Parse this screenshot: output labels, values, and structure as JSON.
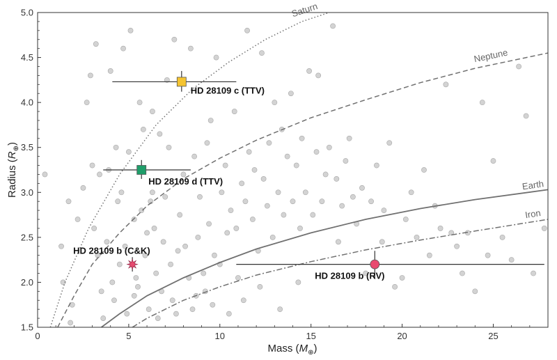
{
  "chart_data": {
    "type": "scatter",
    "xlabel": "Mass",
    "xlabel_symbol": "M",
    "xlabel_sub": "⊕",
    "ylabel": "Radius",
    "ylabel_symbol": "R",
    "ylabel_sub": "⊕",
    "xlim": [
      0,
      28
    ],
    "ylim": [
      1.5,
      5.0
    ],
    "x_ticks": [
      0,
      5,
      10,
      15,
      20,
      25
    ],
    "y_ticks": [
      "1.5",
      "2.0",
      "2.5",
      "3.0",
      "3.5",
      "4.0",
      "4.5",
      "5.0"
    ],
    "grid": false,
    "colors": {
      "background_points": "#c8c8c8",
      "curves": "#707070",
      "planet_c": "#f5c431",
      "planet_d": "#1f9e6a",
      "planet_b": "#e84a6f",
      "errorbar": "#333333"
    },
    "curves": [
      {
        "name": "Saturn",
        "style": "dotted",
        "label_x": 14.7,
        "label_y": 4.95,
        "points": [
          [
            0.7,
            1.5
          ],
          [
            1.5,
            2.0
          ],
          [
            2.8,
            2.6
          ],
          [
            4.5,
            3.2
          ],
          [
            6.5,
            3.75
          ],
          [
            8.5,
            4.15
          ],
          [
            10.5,
            4.45
          ],
          [
            12.5,
            4.7
          ],
          [
            14.5,
            4.9
          ],
          [
            16,
            5.0
          ]
        ]
      },
      {
        "name": "Neptune",
        "style": "dashed",
        "label_x": 24.9,
        "label_y": 4.44,
        "points": [
          [
            1.1,
            1.5
          ],
          [
            2.0,
            1.85
          ],
          [
            3,
            2.2
          ],
          [
            4.5,
            2.55
          ],
          [
            6,
            2.85
          ],
          [
            8,
            3.15
          ],
          [
            10,
            3.38
          ],
          [
            12,
            3.58
          ],
          [
            15,
            3.83
          ],
          [
            18,
            4.03
          ],
          [
            21,
            4.22
          ],
          [
            24,
            4.38
          ],
          [
            28,
            4.55
          ]
        ]
      },
      {
        "name": "Earth",
        "style": "solid",
        "label_x": 27.2,
        "label_y": 3.0,
        "points": [
          [
            3.5,
            1.5
          ],
          [
            4.5,
            1.65
          ],
          [
            6,
            1.85
          ],
          [
            8,
            2.05
          ],
          [
            10,
            2.22
          ],
          [
            12,
            2.37
          ],
          [
            15,
            2.55
          ],
          [
            18,
            2.7
          ],
          [
            21,
            2.82
          ],
          [
            24,
            2.92
          ],
          [
            28,
            3.03
          ]
        ]
      },
      {
        "name": "Iron",
        "style": "dashdot",
        "label_x": 27.2,
        "label_y": 2.68,
        "points": [
          [
            5.2,
            1.5
          ],
          [
            6,
            1.6
          ],
          [
            8,
            1.8
          ],
          [
            10,
            1.95
          ],
          [
            12,
            2.08
          ],
          [
            15,
            2.23
          ],
          [
            18,
            2.36
          ],
          [
            21,
            2.47
          ],
          [
            24,
            2.57
          ],
          [
            28,
            2.7
          ]
        ]
      }
    ],
    "planets": [
      {
        "label": "HD 28109 c (TTV)",
        "x": 7.9,
        "y": 4.23,
        "x_err": [
          3.8,
          3.0
        ],
        "y_err": [
          0.11,
          0.12
        ],
        "marker": "square",
        "color": "#f5c431",
        "label_dx": 13,
        "label_dy": 17
      },
      {
        "label": "HD 28109 d (TTV)",
        "x": 5.7,
        "y": 3.25,
        "x_err": [
          2.1,
          2.7
        ],
        "y_err": [
          0.1,
          0.11
        ],
        "marker": "square",
        "color": "#1f9e6a",
        "label_dx": 10,
        "label_dy": 21
      },
      {
        "label": "HD 28109 b (C&K)",
        "x": 5.2,
        "y": 2.2,
        "x_err": [
          0,
          0
        ],
        "y_err": [
          0.08,
          0.08
        ],
        "marker": "star",
        "color": "#e84a6f",
        "label_dx": -85,
        "label_dy": -15
      },
      {
        "label": "HD 28109 b (RV)",
        "x": 18.5,
        "y": 2.2,
        "x_err": [
          7.6,
          9.3
        ],
        "y_err": [
          0.15,
          0.15
        ],
        "marker": "circle",
        "color": "#e84a6f",
        "label_dx": -86,
        "label_dy": 21
      }
    ],
    "background_points": [
      [
        0.4,
        3.2
      ],
      [
        1.7,
        2.9
      ],
      [
        1.3,
        2.4
      ],
      [
        1.4,
        2.0
      ],
      [
        1.8,
        1.55
      ],
      [
        1.9,
        1.75
      ],
      [
        2.2,
        2.7
      ],
      [
        2.7,
        4.0
      ],
      [
        2.9,
        4.3
      ],
      [
        3.1,
        2.6
      ],
      [
        3.2,
        4.65
      ],
      [
        3.4,
        3.2
      ],
      [
        3.3,
        2.3
      ],
      [
        3.5,
        1.9
      ],
      [
        3.6,
        1.6
      ],
      [
        3.9,
        3.25
      ],
      [
        4.1,
        2.0
      ],
      [
        4.2,
        1.8
      ],
      [
        4.3,
        3.5
      ],
      [
        4.4,
        2.9
      ],
      [
        4.6,
        3.0
      ],
      [
        4.7,
        4.6
      ],
      [
        4.8,
        2.4
      ],
      [
        4.9,
        1.65
      ],
      [
        5.0,
        3.45
      ],
      [
        5.1,
        4.8
      ],
      [
        5.3,
        2.7
      ],
      [
        5.4,
        2.05
      ],
      [
        5.5,
        1.95
      ],
      [
        5.6,
        4.0
      ],
      [
        5.8,
        3.7
      ],
      [
        5.9,
        2.3
      ],
      [
        6.0,
        2.55
      ],
      [
        6.1,
        1.7
      ],
      [
        6.2,
        2.9
      ],
      [
        6.3,
        3.0
      ],
      [
        6.4,
        2.6
      ],
      [
        6.5,
        2.1
      ],
      [
        6.7,
        3.65
      ],
      [
        6.8,
        1.9
      ],
      [
        6.9,
        2.45
      ],
      [
        7.0,
        2.95
      ],
      [
        7.2,
        3.5
      ],
      [
        7.3,
        2.2
      ],
      [
        7.5,
        4.7
      ],
      [
        7.6,
        1.65
      ],
      [
        7.7,
        2.35
      ],
      [
        7.8,
        2.75
      ],
      [
        8.0,
        3.2
      ],
      [
        8.1,
        2.4
      ],
      [
        8.3,
        2.05
      ],
      [
        8.5,
        1.7
      ],
      [
        8.6,
        3.4
      ],
      [
        8.8,
        2.5
      ],
      [
        8.9,
        2.95
      ],
      [
        9.1,
        2.1
      ],
      [
        9.2,
        1.9
      ],
      [
        9.4,
        2.65
      ],
      [
        9.5,
        3.8
      ],
      [
        9.7,
        2.3
      ],
      [
        9.8,
        4.5
      ],
      [
        10.0,
        2.2
      ],
      [
        10.1,
        3.0
      ],
      [
        10.3,
        3.3
      ],
      [
        10.4,
        2.55
      ],
      [
        10.6,
        2.8
      ],
      [
        10.8,
        3.9
      ],
      [
        10.9,
        2.6
      ],
      [
        11.0,
        2.05
      ],
      [
        11.2,
        3.1
      ],
      [
        11.4,
        2.9
      ],
      [
        11.5,
        4.8
      ],
      [
        11.6,
        3.45
      ],
      [
        11.8,
        2.7
      ],
      [
        11.9,
        3.25
      ],
      [
        12.1,
        2.35
      ],
      [
        12.3,
        4.55
      ],
      [
        12.4,
        3.15
      ],
      [
        12.6,
        2.85
      ],
      [
        12.7,
        3.55
      ],
      [
        12.9,
        2.5
      ],
      [
        13.0,
        4.0
      ],
      [
        13.2,
        3.0
      ],
      [
        13.4,
        3.7
      ],
      [
        13.5,
        2.75
      ],
      [
        13.7,
        3.4
      ],
      [
        13.9,
        4.1
      ],
      [
        14.0,
        2.9
      ],
      [
        14.2,
        3.3
      ],
      [
        14.4,
        2.6
      ],
      [
        14.5,
        3.6
      ],
      [
        14.7,
        3.0
      ],
      [
        14.9,
        4.35
      ],
      [
        15.1,
        2.75
      ],
      [
        15.3,
        3.45
      ],
      [
        15.4,
        4.3
      ],
      [
        15.6,
        2.9
      ],
      [
        15.8,
        3.2
      ],
      [
        16.0,
        3.5
      ],
      [
        16.2,
        4.85
      ],
      [
        16.4,
        3.15
      ],
      [
        16.5,
        2.45
      ],
      [
        16.7,
        2.85
      ],
      [
        16.9,
        3.35
      ],
      [
        17.1,
        3.6
      ],
      [
        17.3,
        2.95
      ],
      [
        17.5,
        2.65
      ],
      [
        17.8,
        3.05
      ],
      [
        18.0,
        2.1
      ],
      [
        18.3,
        2.9
      ],
      [
        18.6,
        3.3
      ],
      [
        18.9,
        2.45
      ],
      [
        19.0,
        2.8
      ],
      [
        19.3,
        3.55
      ],
      [
        19.6,
        1.95
      ],
      [
        20.0,
        2.05
      ],
      [
        20.2,
        2.7
      ],
      [
        20.5,
        3.0
      ],
      [
        20.8,
        2.5
      ],
      [
        21.2,
        3.25
      ],
      [
        21.5,
        2.3
      ],
      [
        21.8,
        2.85
      ],
      [
        22.1,
        2.6
      ],
      [
        22.4,
        4.2
      ],
      [
        22.7,
        2.55
      ],
      [
        23.0,
        2.4
      ],
      [
        23.3,
        2.1
      ],
      [
        23.6,
        2.55
      ],
      [
        24.0,
        1.9
      ],
      [
        24.4,
        4.0
      ],
      [
        24.7,
        2.3
      ],
      [
        25.0,
        3.35
      ],
      [
        25.5,
        2.5
      ],
      [
        26.0,
        2.25
      ],
      [
        26.4,
        4.4
      ],
      [
        26.8,
        3.85
      ],
      [
        27.2,
        2.1
      ],
      [
        27.8,
        2.6
      ],
      [
        5.3,
        1.85
      ],
      [
        6.6,
        1.6
      ],
      [
        7.4,
        1.8
      ],
      [
        8.7,
        1.85
      ],
      [
        9.6,
        1.75
      ],
      [
        10.5,
        1.65
      ],
      [
        11.3,
        1.8
      ],
      [
        12.2,
        1.95
      ],
      [
        13.3,
        1.7
      ],
      [
        14.3,
        2.0
      ],
      [
        3.8,
        2.45
      ],
      [
        4.5,
        2.2
      ],
      [
        5.7,
        2.8
      ],
      [
        6.3,
        3.9
      ],
      [
        7.1,
        4.25
      ],
      [
        8.4,
        4.6
      ],
      [
        9.3,
        3.55
      ],
      [
        2.5,
        3.05
      ],
      [
        3.0,
        3.3
      ],
      [
        4.0,
        4.35
      ]
    ]
  }
}
